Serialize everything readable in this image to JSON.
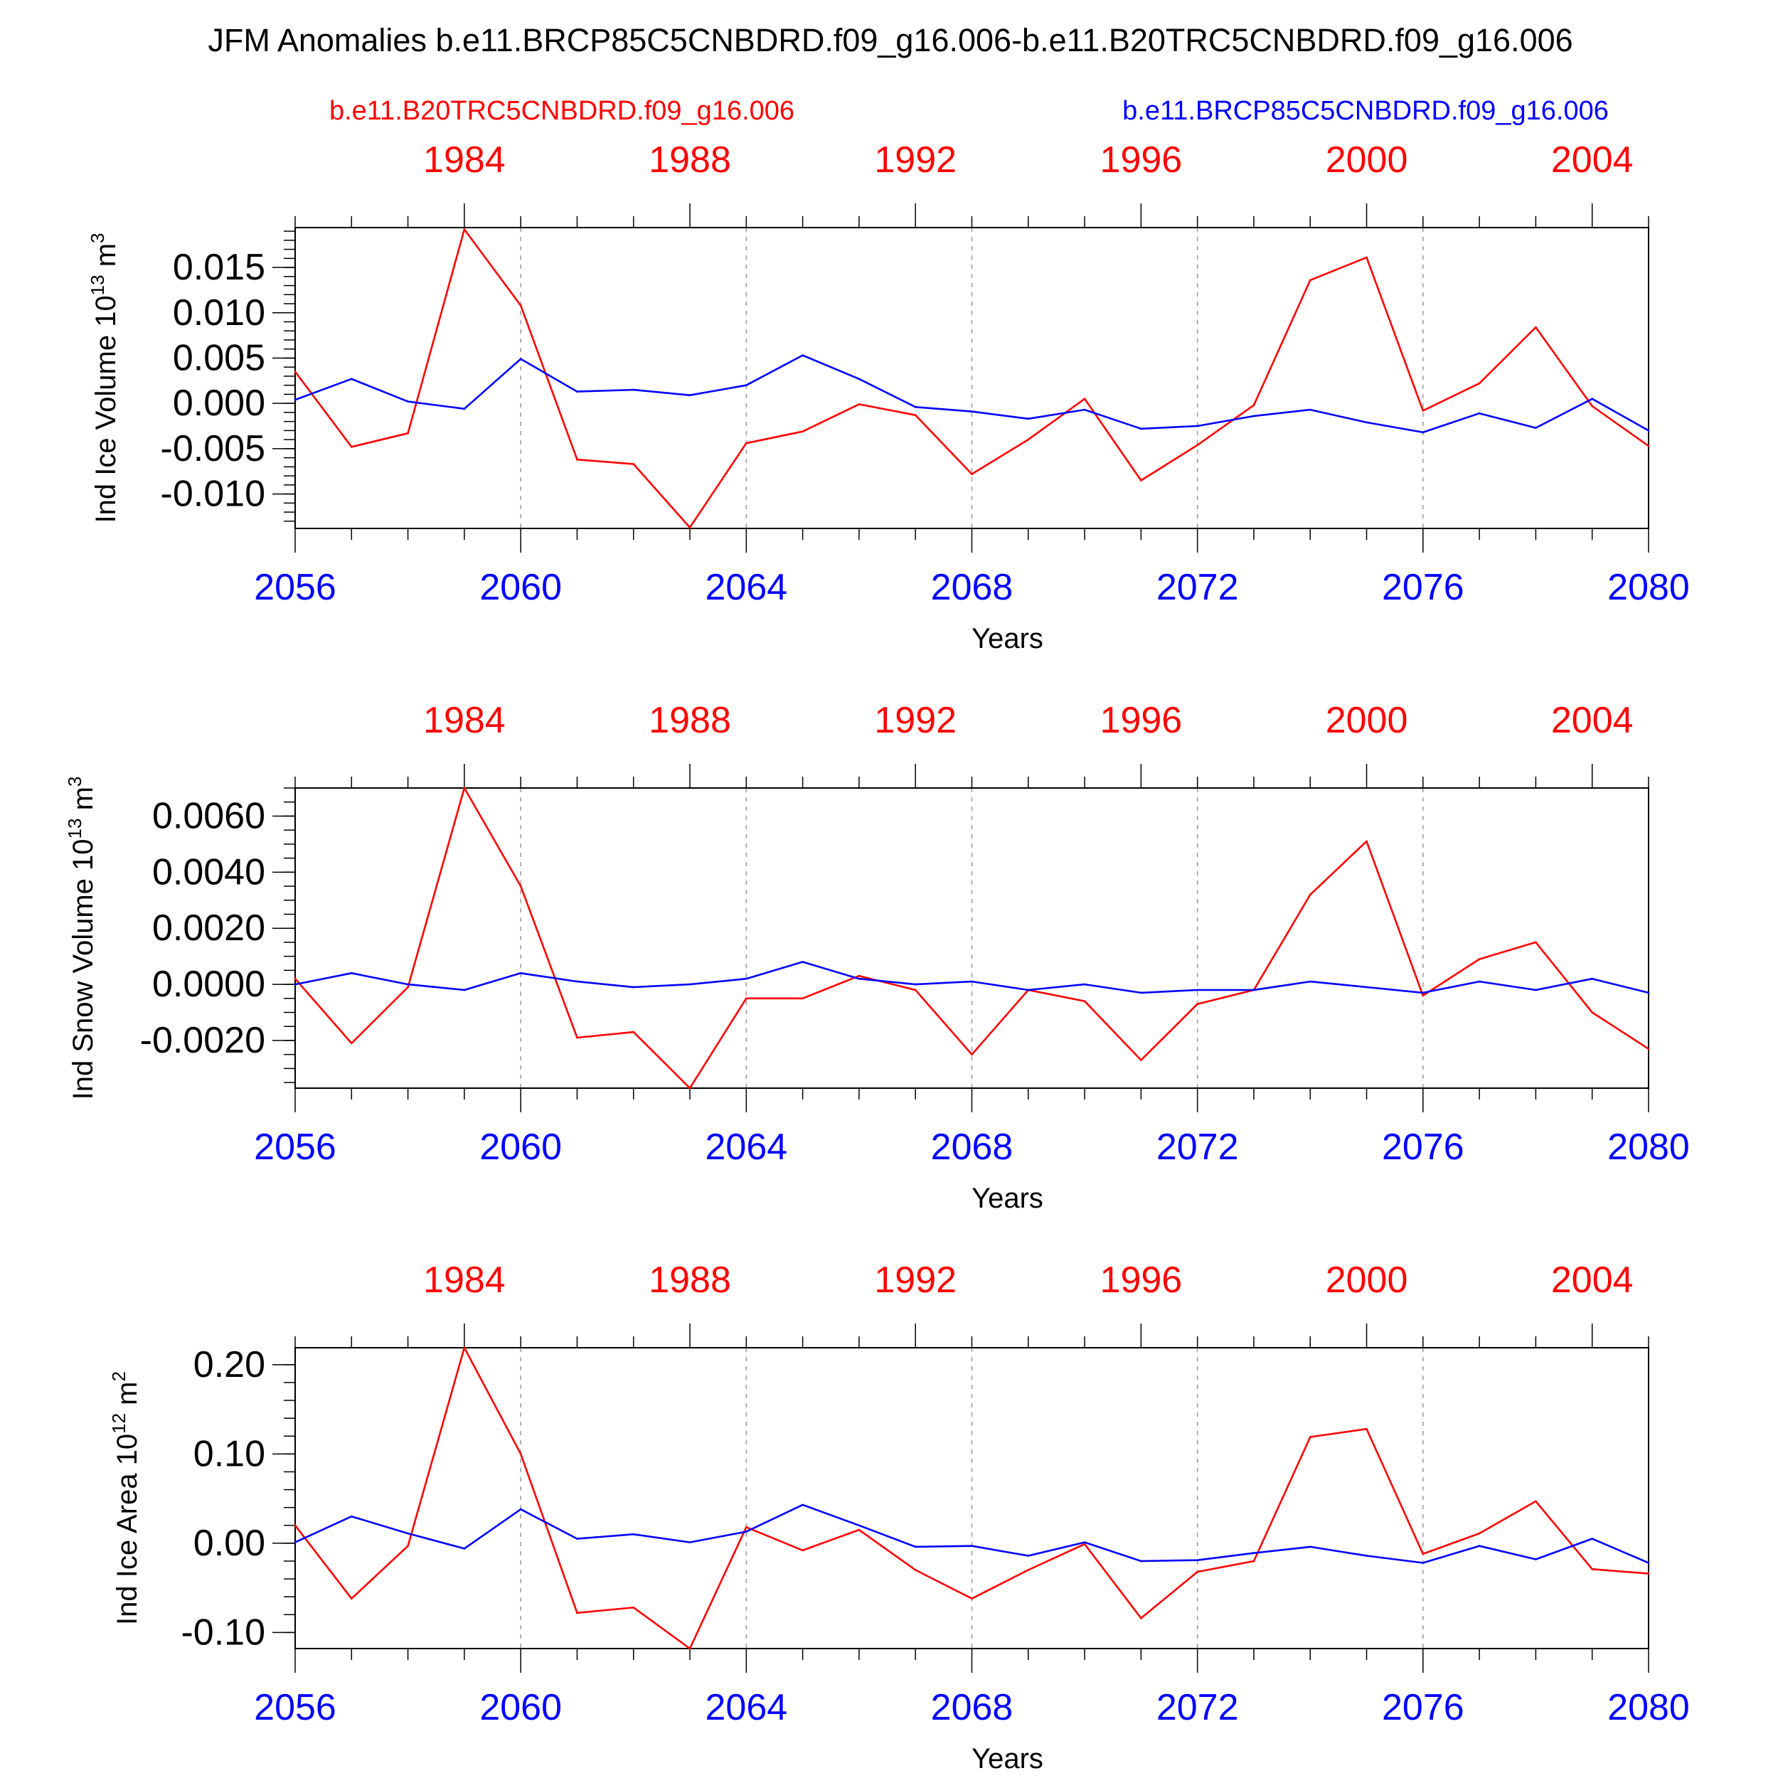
{
  "title": "JFM Anomalies b.e11.BRCP85C5CNBDRD.f09_g16.006-b.e11.B20TRC5CNBDRD.f09_g16.006",
  "legend": {
    "left_label": "b.e11.B20TRC5CNBDRD.f09_g16.006",
    "right_label": "b.e11.BRCP85C5CNBDRD.f09_g16.006"
  },
  "colors": {
    "hist": "#ff0000",
    "future": "#0000ff",
    "axis": "#000000",
    "grid": "#999999"
  },
  "chart_data": [
    {
      "type": "line",
      "title": "Ind Ice Volume",
      "ylabel_text": "Ind Ice Volume 10",
      "ylabel_exp": "13",
      "ylabel_unit": " m",
      "ylabel_unit_exp": "3",
      "xlabel": "Years",
      "x_bottom": [
        2056,
        2057,
        2058,
        2059,
        2060,
        2061,
        2062,
        2063,
        2064,
        2065,
        2066,
        2067,
        2068,
        2069,
        2070,
        2071,
        2072,
        2073,
        2074,
        2075,
        2076,
        2077,
        2078,
        2079,
        2080
      ],
      "bottom_ticks": [
        "2056",
        "2060",
        "2064",
        "2068",
        "2072",
        "2076",
        "2080"
      ],
      "top_ticks": [
        "1984",
        "1988",
        "1992",
        "1996",
        "2000",
        "2004"
      ],
      "y_ticks": [
        "0.015",
        "0.010",
        "0.005",
        "0.000",
        "-0.005",
        "-0.010"
      ],
      "y_tick_values": [
        0.015,
        0.01,
        0.005,
        0.0,
        -0.005,
        -0.01
      ],
      "y_minor_step": 0.001,
      "ylim": [
        -0.0138,
        0.0194
      ],
      "series": [
        {
          "name": "b.e11.B20TRC5CNBDRD.f09_g16.006",
          "color_key": "hist",
          "values": [
            0.0035,
            -0.0048,
            -0.0033,
            0.0192,
            0.0108,
            -0.0062,
            -0.0067,
            -0.0137,
            -0.0044,
            -0.0031,
            -0.0001,
            -0.0013,
            -0.0078,
            -0.004,
            0.0005,
            -0.0085,
            -0.0046,
            -0.0002,
            0.0136,
            0.0161,
            -0.0008,
            0.0022,
            0.0084,
            -0.0003,
            -0.0047
          ]
        },
        {
          "name": "b.e11.BRCP85C5CNBDRD.f09_g16.006",
          "color_key": "future",
          "values": [
            0.0004,
            0.0027,
            0.0002,
            -0.0006,
            0.0049,
            0.0013,
            0.0015,
            0.0009,
            0.002,
            0.0053,
            0.0027,
            -0.0004,
            -0.0009,
            -0.0017,
            -0.0007,
            -0.0028,
            -0.0025,
            -0.0014,
            -0.0007,
            -0.0021,
            -0.0032,
            -0.0011,
            -0.0027,
            0.0005,
            -0.003
          ]
        }
      ]
    },
    {
      "type": "line",
      "title": "Ind Snow Volume",
      "ylabel_text": "Ind Snow Volume 10",
      "ylabel_exp": "13",
      "ylabel_unit": " m",
      "ylabel_unit_exp": "3",
      "xlabel": "Years",
      "x_bottom": [
        2056,
        2057,
        2058,
        2059,
        2060,
        2061,
        2062,
        2063,
        2064,
        2065,
        2066,
        2067,
        2068,
        2069,
        2070,
        2071,
        2072,
        2073,
        2074,
        2075,
        2076,
        2077,
        2078,
        2079,
        2080
      ],
      "bottom_ticks": [
        "2056",
        "2060",
        "2064",
        "2068",
        "2072",
        "2076",
        "2080"
      ],
      "top_ticks": [
        "1984",
        "1988",
        "1992",
        "1996",
        "2000",
        "2004"
      ],
      "y_ticks": [
        "0.0060",
        "0.0040",
        "0.0020",
        "0.0000",
        "-0.0020"
      ],
      "y_tick_values": [
        0.006,
        0.004,
        0.002,
        0.0,
        -0.002
      ],
      "y_minor_step": 0.0005,
      "ylim": [
        -0.0037,
        0.007
      ],
      "series": [
        {
          "name": "b.e11.B20TRC5CNBDRD.f09_g16.006",
          "color_key": "hist",
          "values": [
            0.0002,
            -0.0021,
            -0.0001,
            0.007,
            0.0035,
            -0.0019,
            -0.0017,
            -0.0037,
            -0.0005,
            -0.0005,
            0.0003,
            -0.0002,
            -0.0025,
            -0.0002,
            -0.0006,
            -0.0027,
            -0.0007,
            -0.0002,
            0.0032,
            0.0051,
            -0.0004,
            0.0009,
            0.0015,
            -0.001,
            -0.0023
          ]
        },
        {
          "name": "b.e11.BRCP85C5CNBDRD.f09_g16.006",
          "color_key": "future",
          "values": [
            0.0,
            0.0004,
            0.0,
            -0.0002,
            0.0004,
            0.0001,
            -0.0001,
            0.0,
            0.0002,
            0.0008,
            0.0002,
            0.0,
            0.0001,
            -0.0002,
            0.0,
            -0.0003,
            -0.0002,
            -0.0002,
            0.0001,
            -0.0001,
            -0.0003,
            0.0001,
            -0.0002,
            0.0002,
            -0.0003
          ]
        }
      ]
    },
    {
      "type": "line",
      "title": "Ind Ice Area",
      "ylabel_text": "Ind Ice Area 10",
      "ylabel_exp": "12",
      "ylabel_unit": " m",
      "ylabel_unit_exp": "2",
      "xlabel": "Years",
      "x_bottom": [
        2056,
        2057,
        2058,
        2059,
        2060,
        2061,
        2062,
        2063,
        2064,
        2065,
        2066,
        2067,
        2068,
        2069,
        2070,
        2071,
        2072,
        2073,
        2074,
        2075,
        2076,
        2077,
        2078,
        2079,
        2080
      ],
      "bottom_ticks": [
        "2056",
        "2060",
        "2064",
        "2068",
        "2072",
        "2076",
        "2080"
      ],
      "top_ticks": [
        "1984",
        "1988",
        "1992",
        "1996",
        "2000",
        "2004"
      ],
      "y_ticks": [
        "0.20",
        "0.10",
        "0.00",
        "-0.10"
      ],
      "y_tick_values": [
        0.2,
        0.1,
        0.0,
        -0.1
      ],
      "y_minor_step": 0.02,
      "ylim": [
        -0.118,
        0.219
      ],
      "series": [
        {
          "name": "b.e11.B20TRC5CNBDRD.f09_g16.006",
          "color_key": "hist",
          "values": [
            0.02,
            -0.062,
            -0.003,
            0.219,
            0.1,
            -0.078,
            -0.072,
            -0.118,
            0.018,
            -0.008,
            0.015,
            -0.03,
            -0.062,
            -0.03,
            -0.001,
            -0.084,
            -0.032,
            -0.02,
            0.119,
            0.128,
            -0.012,
            0.011,
            0.047,
            -0.029,
            -0.034
          ]
        },
        {
          "name": "b.e11.BRCP85C5CNBDRD.f09_g16.006",
          "color_key": "future",
          "values": [
            0.001,
            0.03,
            0.011,
            -0.006,
            0.038,
            0.005,
            0.01,
            0.001,
            0.013,
            0.043,
            0.02,
            -0.004,
            -0.003,
            -0.014,
            0.001,
            -0.02,
            -0.019,
            -0.011,
            -0.004,
            -0.014,
            -0.022,
            -0.003,
            -0.018,
            0.005,
            -0.022
          ]
        }
      ]
    }
  ]
}
